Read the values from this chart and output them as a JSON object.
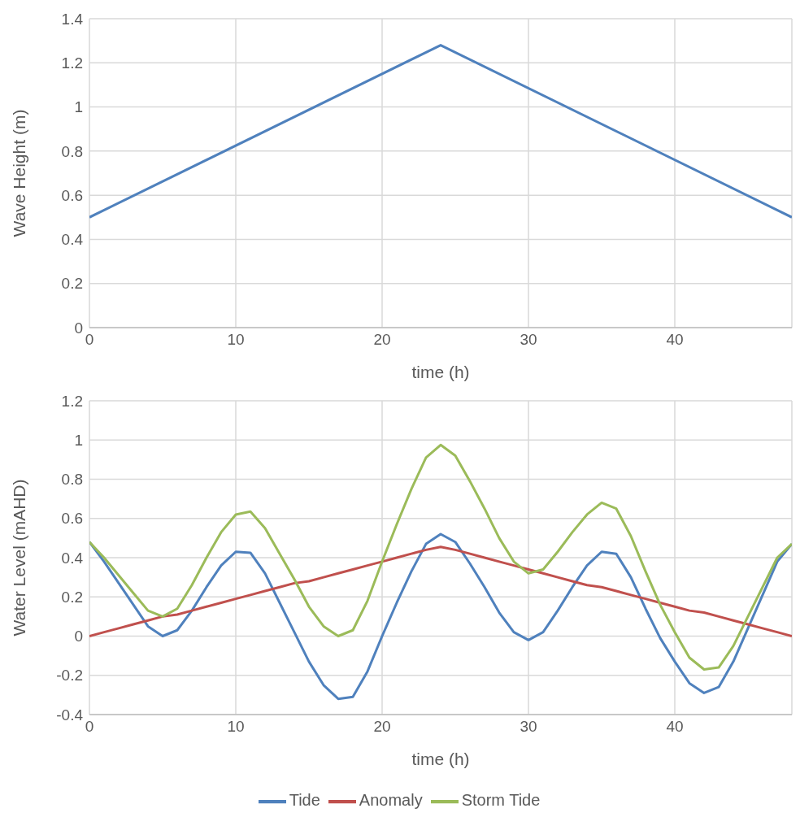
{
  "chart_data": [
    {
      "type": "line",
      "xlabel": "time (h)",
      "ylabel": "Wave Height (m)",
      "x": [
        0,
        24,
        48
      ],
      "series": [
        {
          "color": "#4f81bd",
          "values": [
            0.5,
            1.28,
            0.5
          ]
        }
      ],
      "xlim": [
        0,
        48
      ],
      "xticks": [
        0,
        10,
        20,
        30,
        40
      ],
      "ylim": [
        0,
        1.4
      ],
      "yticks": [
        0,
        0.2,
        0.4,
        0.6,
        0.8,
        1,
        1.2,
        1.4
      ],
      "grid": true,
      "legend": false,
      "marker": "none",
      "line_style": "solid"
    },
    {
      "type": "line",
      "xlabel": "time (h)",
      "ylabel": "Water Level (mAHD)",
      "x": [
        0,
        1,
        2,
        3,
        4,
        5,
        6,
        7,
        8,
        9,
        10,
        11,
        12,
        13,
        14,
        15,
        16,
        17,
        18,
        19,
        20,
        21,
        22,
        23,
        24,
        25,
        26,
        27,
        28,
        29,
        30,
        31,
        32,
        33,
        34,
        35,
        36,
        37,
        38,
        39,
        40,
        41,
        42,
        43,
        44,
        45,
        46,
        47,
        48
      ],
      "series": [
        {
          "name": "Tide",
          "color": "#4f81bd",
          "values": [
            0.48,
            0.38,
            0.27,
            0.16,
            0.05,
            0.0,
            0.03,
            0.13,
            0.25,
            0.36,
            0.43,
            0.425,
            0.32,
            0.17,
            0.02,
            -0.13,
            -0.25,
            -0.32,
            -0.31,
            -0.18,
            0.0,
            0.17,
            0.33,
            0.47,
            0.52,
            0.48,
            0.37,
            0.25,
            0.12,
            0.02,
            -0.02,
            0.02,
            0.13,
            0.25,
            0.36,
            0.43,
            0.42,
            0.3,
            0.14,
            -0.01,
            -0.13,
            -0.24,
            -0.29,
            -0.26,
            -0.13,
            0.04,
            0.21,
            0.38,
            0.47
          ]
        },
        {
          "name": "Anomaly",
          "color": "#c0504d",
          "values": [
            0.0,
            0.02,
            0.04,
            0.06,
            0.08,
            0.1,
            0.11,
            0.13,
            0.15,
            0.17,
            0.19,
            0.21,
            0.23,
            0.25,
            0.27,
            0.28,
            0.3,
            0.32,
            0.34,
            0.36,
            0.38,
            0.4,
            0.42,
            0.44,
            0.455,
            0.44,
            0.42,
            0.4,
            0.38,
            0.36,
            0.34,
            0.32,
            0.3,
            0.28,
            0.26,
            0.25,
            0.23,
            0.21,
            0.19,
            0.17,
            0.15,
            0.13,
            0.12,
            0.1,
            0.08,
            0.06,
            0.04,
            0.02,
            0.0
          ]
        },
        {
          "name": "Storm Tide",
          "color": "#9bbb59",
          "values": [
            0.48,
            0.4,
            0.31,
            0.22,
            0.13,
            0.1,
            0.14,
            0.26,
            0.4,
            0.53,
            0.62,
            0.635,
            0.55,
            0.42,
            0.29,
            0.15,
            0.05,
            0.0,
            0.03,
            0.18,
            0.38,
            0.57,
            0.75,
            0.91,
            0.975,
            0.92,
            0.79,
            0.65,
            0.5,
            0.38,
            0.32,
            0.34,
            0.43,
            0.53,
            0.62,
            0.68,
            0.65,
            0.51,
            0.33,
            0.16,
            0.02,
            -0.11,
            -0.17,
            -0.16,
            -0.05,
            0.1,
            0.25,
            0.4,
            0.47
          ]
        }
      ],
      "xlim": [
        0,
        48
      ],
      "xticks": [
        0,
        10,
        20,
        30,
        40
      ],
      "ylim": [
        -0.4,
        1.2
      ],
      "yticks": [
        -0.4,
        -0.2,
        0,
        0.2,
        0.4,
        0.6,
        0.8,
        1,
        1.2
      ],
      "grid": true,
      "legend": "bottom",
      "marker": "none",
      "line_style": "solid"
    }
  ]
}
